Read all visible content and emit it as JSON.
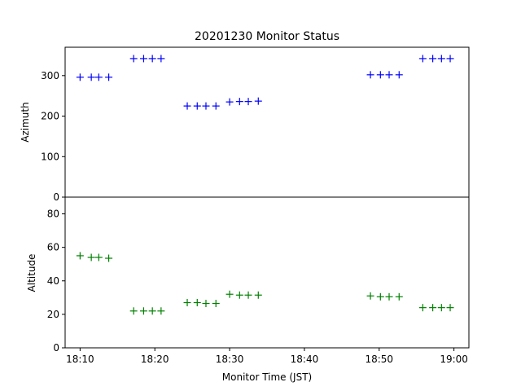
{
  "chart_data": [
    {
      "type": "scatter",
      "title": "20201230 Monitor Status",
      "ylabel": "Azimuth",
      "xlabel": "",
      "marker": "+",
      "color": "#0000ff",
      "ylim": [
        0,
        370
      ],
      "yticks": [
        0,
        100,
        200,
        300
      ],
      "xlim": [
        "18:08",
        "19:02"
      ],
      "grid": false,
      "series": [
        {
          "x": [
            "18:10:00",
            "18:11:30",
            "18:12:30",
            "18:13:50",
            "18:17:10",
            "18:18:30",
            "18:19:40",
            "18:20:50",
            "18:24:20",
            "18:25:40",
            "18:26:50",
            "18:28:10",
            "18:30:00",
            "18:31:20",
            "18:32:30",
            "18:33:50",
            "18:48:50",
            "18:50:10",
            "18:51:20",
            "18:52:40",
            "18:55:50",
            "18:57:10",
            "18:58:20",
            "18:59:30"
          ],
          "y": [
            296,
            296,
            296,
            296,
            342,
            342,
            342,
            342,
            225,
            225,
            225,
            225,
            235,
            236,
            236,
            237,
            302,
            302,
            302,
            302,
            342,
            342,
            342,
            342
          ]
        }
      ]
    },
    {
      "type": "scatter",
      "title": "",
      "ylabel": "Altitude",
      "xlabel": "Monitor Time (JST)",
      "marker": "+",
      "color": "#008000",
      "ylim": [
        0,
        90
      ],
      "yticks": [
        0,
        20,
        40,
        60,
        80
      ],
      "xlim": [
        "18:08",
        "19:02"
      ],
      "xticks": [
        "18:10",
        "18:20",
        "18:30",
        "18:40",
        "18:50",
        "19:00"
      ],
      "grid": false,
      "series": [
        {
          "x": [
            "18:10:00",
            "18:11:30",
            "18:12:30",
            "18:13:50",
            "18:17:10",
            "18:18:30",
            "18:19:40",
            "18:20:50",
            "18:24:20",
            "18:25:40",
            "18:26:50",
            "18:28:10",
            "18:30:00",
            "18:31:20",
            "18:32:30",
            "18:33:50",
            "18:48:50",
            "18:50:10",
            "18:51:20",
            "18:52:40",
            "18:55:50",
            "18:57:10",
            "18:58:20",
            "18:59:30"
          ],
          "y": [
            55,
            54,
            54,
            53.5,
            22,
            22,
            22,
            22,
            27,
            27,
            26.5,
            26.5,
            32,
            31.5,
            31.5,
            31.5,
            31,
            30.5,
            30.5,
            30.5,
            24,
            24,
            24,
            24
          ]
        }
      ]
    }
  ]
}
